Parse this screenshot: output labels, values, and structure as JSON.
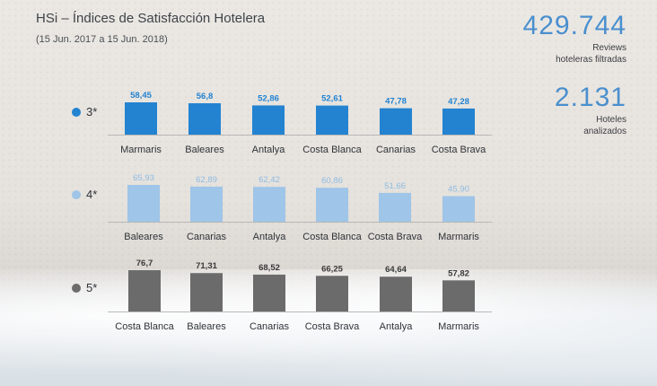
{
  "header": {
    "title": "HSi – Índices de Satisfacción Hotelera",
    "subtitle": "(15 Jun. 2017 a 15 Jun. 2018)"
  },
  "stats": {
    "reviews_value": "429.744",
    "reviews_label_1": "Reviews",
    "reviews_label_2": "hoteleras filtradas",
    "hotels_value": "2.131",
    "hotels_label_1": "Hoteles",
    "hotels_label_2": "analizados"
  },
  "colors": {
    "stat_accent": "#4a8fce"
  },
  "chart_data": [
    {
      "type": "bar",
      "group_label": "3*",
      "color": "#2383d1",
      "label_color": "#2383d1",
      "categories": [
        "Marmaris",
        "Baleares",
        "Antalya",
        "Costa Blanca",
        "Canarias",
        "Costa Brava"
      ],
      "values": [
        58.45,
        56.8,
        52.86,
        52.61,
        47.78,
        47.28
      ],
      "labels": [
        "58,45",
        "56,8",
        "52,86",
        "52,61",
        "47,78",
        "47,28"
      ]
    },
    {
      "type": "bar",
      "group_label": "4*",
      "color": "#9fc5e8",
      "label_color": "#8fbce2",
      "categories": [
        "Baleares",
        "Canarias",
        "Antalya",
        "Costa Blanca",
        "Costa Brava",
        "Marmaris"
      ],
      "values": [
        65.93,
        62.89,
        62.42,
        60.86,
        51.66,
        45.9
      ],
      "labels": [
        "65,93",
        "62,89",
        "62,42",
        "60,86",
        "51,66",
        "45,90"
      ]
    },
    {
      "type": "bar",
      "group_label": "5*",
      "color": "#6b6b6b",
      "label_color": "#3a3a3a",
      "categories": [
        "Costa Blanca",
        "Baleares",
        "Canarias",
        "Costa Brava",
        "Antalya",
        "Marmaris"
      ],
      "values": [
        76.7,
        71.31,
        68.52,
        66.25,
        64.64,
        57.82
      ],
      "labels": [
        "76,7",
        "71,31",
        "68,52",
        "66,25",
        "64,64",
        "57,82"
      ]
    }
  ]
}
